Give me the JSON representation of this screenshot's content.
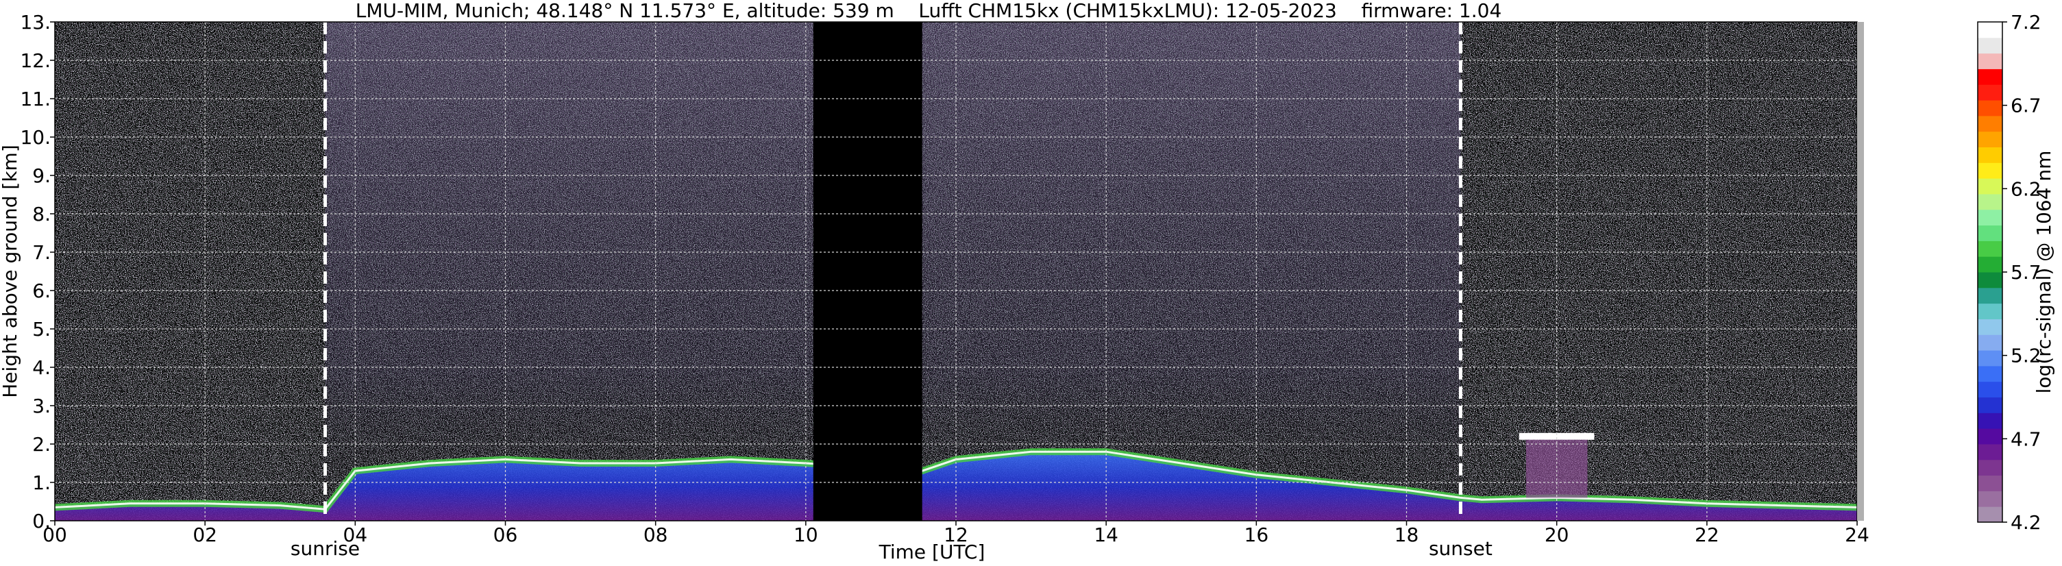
{
  "chart_data": {
    "type": "heatmap",
    "title": "LMU-MIM, Munich; 48.148° N 11.573° E, altitude: 539 m    Lufft CHM15kx (CHM15kxLMU): 12-05-2023    firmware: 1.04",
    "xlabel": "Time [UTC]",
    "ylabel": "Height above ground [km]",
    "xlim": [
      0,
      24
    ],
    "ylim": [
      0,
      13
    ],
    "x_ticks": [
      "00",
      "02",
      "04",
      "06",
      "08",
      "10",
      "12",
      "14",
      "16",
      "18",
      "20",
      "22",
      "24"
    ],
    "y_ticks": [
      "0.",
      "1.",
      "2.",
      "3.",
      "4.",
      "5.",
      "6.",
      "7.",
      "8.",
      "9.",
      "10.",
      "11.",
      "12.",
      "13."
    ],
    "grid": true,
    "events": [
      {
        "label": "sunrise",
        "time": 3.6
      },
      {
        "label": "sunset",
        "time": 18.72
      }
    ],
    "colorbar": {
      "label": "log(rc-signal) @ 1064 nm",
      "range": [
        4.2,
        7.2
      ],
      "ticks": [
        "4.2",
        "4.7",
        "5.2",
        "5.7",
        "6.2",
        "6.7",
        "7.2"
      ],
      "colors": [
        "#a68fae",
        "#9a6fa0",
        "#8c5094",
        "#7d3590",
        "#6c1c94",
        "#550aa0",
        "#3612b4",
        "#2432d2",
        "#2a4fea",
        "#3a6ff6",
        "#5e8ff4",
        "#86acf0",
        "#90c8ec",
        "#62c6c8",
        "#2aa090",
        "#0e8b3c",
        "#24ad34",
        "#48cc46",
        "#62e07e",
        "#8ef0a4",
        "#b8f48a",
        "#d8f858",
        "#ffec18",
        "#ffcc00",
        "#ffa400",
        "#ff7e00",
        "#ff4f00",
        "#ff1e10",
        "#ff0000",
        "#f4b8b8",
        "#e8e8e8",
        "#ffffff"
      ]
    },
    "no_data_intervals": [
      [
        10.1,
        11.55
      ]
    ],
    "layers": [
      {
        "name": "boundary-layer",
        "times": [
          0,
          1,
          2,
          3,
          3.6,
          4,
          5,
          6,
          7,
          8,
          9,
          10,
          11.55,
          12,
          13,
          14,
          15,
          16,
          17,
          18,
          18.72,
          19,
          20,
          21,
          22,
          23,
          24
        ],
        "top_km": [
          0.35,
          0.45,
          0.45,
          0.4,
          0.3,
          1.3,
          1.5,
          1.6,
          1.5,
          1.5,
          1.6,
          1.5,
          1.3,
          1.6,
          1.8,
          1.8,
          1.5,
          1.2,
          1.0,
          0.8,
          0.6,
          0.55,
          0.6,
          0.55,
          0.45,
          0.4,
          0.35
        ]
      }
    ],
    "clouds": [
      {
        "time_start": 19.5,
        "time_end": 20.5,
        "height_km": 2.2
      }
    ]
  }
}
